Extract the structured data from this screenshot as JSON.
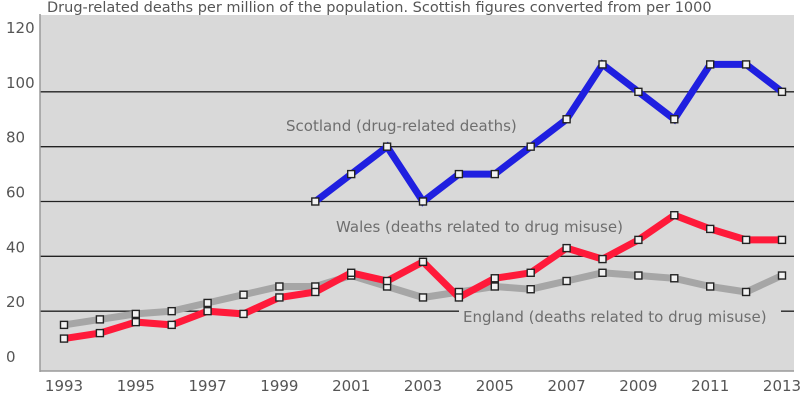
{
  "chart_data": {
    "type": "line",
    "title": "Drug-related deaths per million of the population. Scottish figures converted from per 1000",
    "xlabel": "",
    "ylabel": "",
    "xlim": [
      1993,
      2013
    ],
    "ylim": [
      0,
      120
    ],
    "x_ticks": [
      1993,
      1995,
      1997,
      1999,
      2001,
      2003,
      2005,
      2007,
      2009,
      2011,
      2013
    ],
    "y_ticks": [
      0,
      20,
      40,
      60,
      80,
      100,
      120
    ],
    "grid": true,
    "colors": {
      "plot_background": "#d9d9d9",
      "grid_line": "#222222",
      "axis": "#999999",
      "marker_fill": "#f2f2f2",
      "marker_edge": "#222222"
    },
    "series": [
      {
        "name": "England (deaths related to drug misuse)",
        "color": "#a6a6a6",
        "x": [
          1993,
          1994,
          1995,
          1996,
          1997,
          1998,
          1999,
          2000,
          2001,
          2002,
          2003,
          2004,
          2005,
          2006,
          2007,
          2008,
          2009,
          2010,
          2011,
          2012,
          2013
        ],
        "y": [
          15,
          17,
          19,
          20,
          23,
          26,
          29,
          29,
          33,
          29,
          25,
          27,
          29,
          28,
          31,
          34,
          33,
          32,
          29,
          27,
          33
        ]
      },
      {
        "name": "Wales (deaths related to drug misuse)",
        "color": "#ff1a3a",
        "x": [
          1993,
          1994,
          1995,
          1996,
          1997,
          1998,
          1999,
          2000,
          2001,
          2002,
          2003,
          2004,
          2005,
          2006,
          2007,
          2008,
          2009,
          2010,
          2011,
          2012,
          2013
        ],
        "y": [
          10,
          12,
          16,
          15,
          20,
          19,
          25,
          27,
          34,
          31,
          38,
          25,
          32,
          34,
          43,
          39,
          46,
          55,
          50,
          46,
          46
        ]
      },
      {
        "name": "Scotland (drug-related deaths)",
        "color": "#1f1fe0",
        "x": [
          2000,
          2001,
          2002,
          2003,
          2004,
          2005,
          2006,
          2007,
          2008,
          2009,
          2010,
          2011,
          2012,
          2013
        ],
        "y": [
          60,
          70,
          80,
          60,
          70,
          70,
          80,
          90,
          110,
          100,
          90,
          110,
          110,
          100
        ]
      }
    ]
  }
}
